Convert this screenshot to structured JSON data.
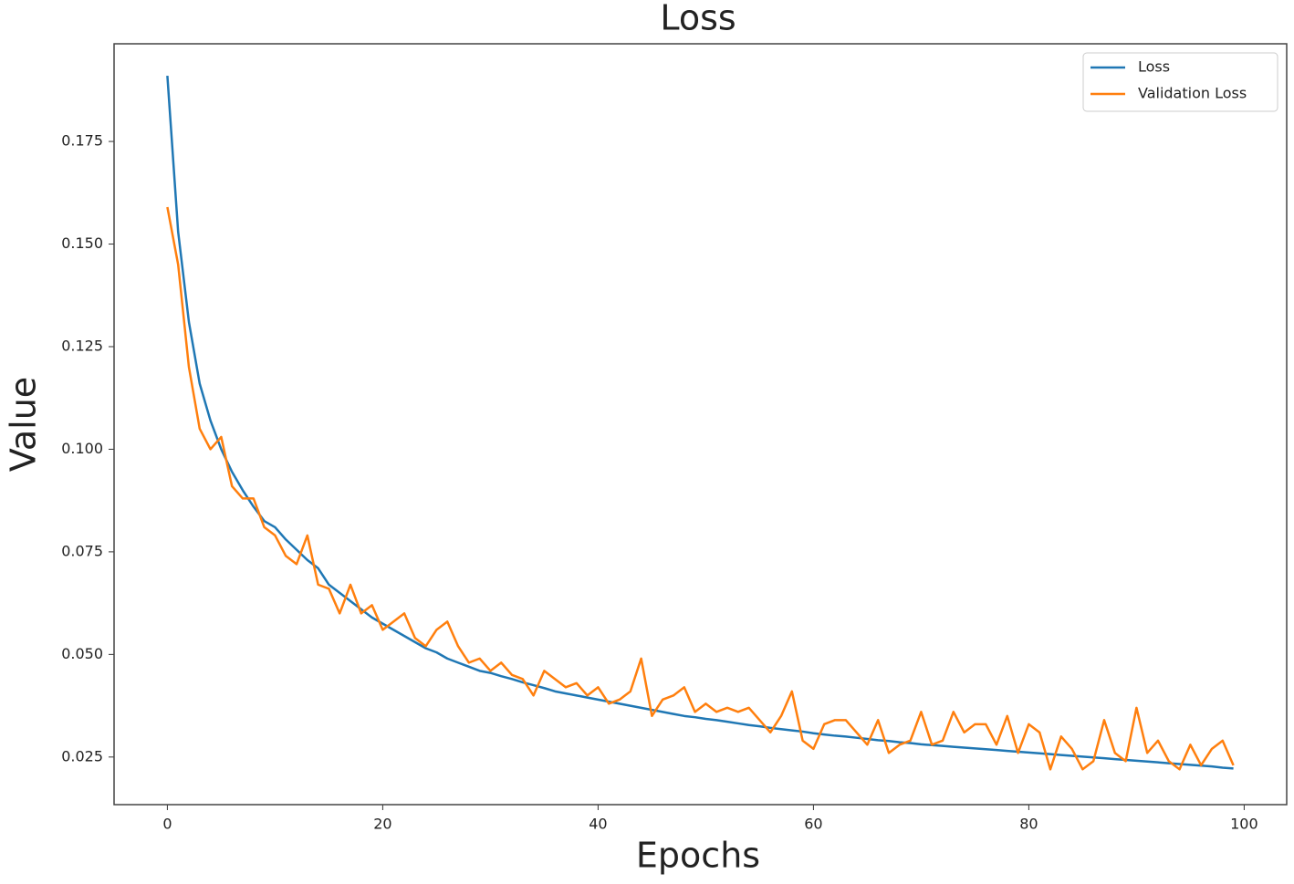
{
  "chart_data": {
    "type": "line",
    "title": "Loss",
    "xlabel": "Epochs",
    "ylabel": "Value",
    "x": [
      0,
      1,
      2,
      3,
      4,
      5,
      6,
      7,
      8,
      9,
      10,
      11,
      12,
      13,
      14,
      15,
      16,
      17,
      18,
      19,
      20,
      21,
      22,
      23,
      24,
      25,
      26,
      27,
      28,
      29,
      30,
      31,
      32,
      33,
      34,
      35,
      36,
      37,
      38,
      39,
      40,
      41,
      42,
      43,
      44,
      45,
      46,
      47,
      48,
      49,
      50,
      51,
      52,
      53,
      54,
      55,
      56,
      57,
      58,
      59,
      60,
      61,
      62,
      63,
      64,
      65,
      66,
      67,
      68,
      69,
      70,
      71,
      72,
      73,
      74,
      75,
      76,
      77,
      78,
      79,
      80,
      81,
      82,
      83,
      84,
      85,
      86,
      87,
      88,
      89,
      90,
      91,
      92,
      93,
      94,
      95,
      96,
      97,
      98,
      99
    ],
    "series": [
      {
        "name": "Loss",
        "color": "#1f77b4",
        "values": [
          0.191,
          0.153,
          0.131,
          0.116,
          0.107,
          0.1,
          0.0945,
          0.09,
          0.086,
          0.0825,
          0.081,
          0.078,
          0.0755,
          0.073,
          0.071,
          0.067,
          0.065,
          0.063,
          0.061,
          0.059,
          0.0575,
          0.056,
          0.0545,
          0.053,
          0.0515,
          0.0505,
          0.049,
          0.048,
          0.047,
          0.046,
          0.0455,
          0.0447,
          0.044,
          0.0432,
          0.0425,
          0.0418,
          0.041,
          0.0405,
          0.04,
          0.0395,
          0.039,
          0.0385,
          0.038,
          0.0375,
          0.037,
          0.0365,
          0.036,
          0.0355,
          0.035,
          0.0347,
          0.0343,
          0.034,
          0.0336,
          0.0332,
          0.0328,
          0.0325,
          0.0321,
          0.0318,
          0.0315,
          0.0312,
          0.0308,
          0.0305,
          0.0302,
          0.03,
          0.0297,
          0.0294,
          0.0291,
          0.0289,
          0.0286,
          0.0284,
          0.0281,
          0.0279,
          0.0277,
          0.0275,
          0.0273,
          0.0271,
          0.0269,
          0.0267,
          0.0265,
          0.0263,
          0.0261,
          0.0259,
          0.0257,
          0.0255,
          0.0253,
          0.0251,
          0.0249,
          0.0247,
          0.0245,
          0.0243,
          0.0241,
          0.0239,
          0.0237,
          0.0235,
          0.0233,
          0.0231,
          0.0229,
          0.0227,
          0.0224,
          0.0222
        ]
      },
      {
        "name": "Validation Loss",
        "color": "#ff7f0e",
        "values": [
          0.159,
          0.145,
          0.12,
          0.105,
          0.1,
          0.103,
          0.091,
          0.088,
          0.088,
          0.081,
          0.079,
          0.074,
          0.072,
          0.079,
          0.067,
          0.066,
          0.06,
          0.067,
          0.06,
          0.062,
          0.056,
          0.058,
          0.06,
          0.054,
          0.052,
          0.056,
          0.058,
          0.052,
          0.048,
          0.049,
          0.046,
          0.048,
          0.045,
          0.044,
          0.04,
          0.046,
          0.044,
          0.042,
          0.043,
          0.04,
          0.042,
          0.038,
          0.039,
          0.041,
          0.049,
          0.035,
          0.039,
          0.04,
          0.042,
          0.036,
          0.038,
          0.036,
          0.037,
          0.036,
          0.037,
          0.034,
          0.031,
          0.035,
          0.041,
          0.029,
          0.027,
          0.033,
          0.034,
          0.034,
          0.031,
          0.028,
          0.034,
          0.026,
          0.028,
          0.029,
          0.036,
          0.028,
          0.029,
          0.036,
          0.031,
          0.033,
          0.033,
          0.028,
          0.035,
          0.026,
          0.033,
          0.031,
          0.022,
          0.03,
          0.027,
          0.022,
          0.024,
          0.034,
          0.026,
          0.024,
          0.037,
          0.026,
          0.029,
          0.024,
          0.022,
          0.028,
          0.023,
          0.027,
          0.029,
          0.023
        ]
      }
    ],
    "xlim": [
      -4.95,
      103.95
    ],
    "ylim": [
      0.0134,
      0.1988
    ],
    "xticks": [
      0,
      20,
      40,
      60,
      80,
      100
    ],
    "yticks": [
      {
        "value": 0.025,
        "label": "0.025"
      },
      {
        "value": 0.05,
        "label": "0.050"
      },
      {
        "value": 0.075,
        "label": "0.075"
      },
      {
        "value": 0.1,
        "label": "0.100"
      },
      {
        "value": 0.125,
        "label": "0.125"
      },
      {
        "value": 0.15,
        "label": "0.150"
      },
      {
        "value": 0.175,
        "label": "0.175"
      }
    ],
    "legend": "upper right",
    "grid": false
  }
}
